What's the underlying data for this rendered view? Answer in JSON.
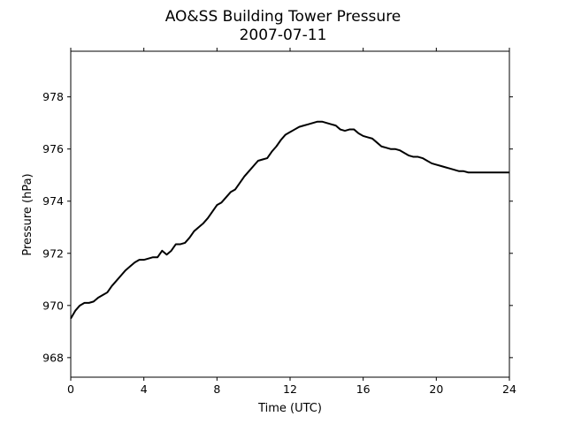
{
  "chart_data": {
    "type": "line",
    "title": "AO&SS Building Tower Pressure",
    "subtitle": "2007-07-11",
    "xlabel": "Time (UTC)",
    "ylabel": "Pressure (hPa)",
    "xlim": [
      0,
      24
    ],
    "ylim": [
      967.25,
      979.75
    ],
    "xticks": [
      0,
      4,
      8,
      12,
      16,
      20,
      24
    ],
    "xtick_labels": [
      "0",
      "4",
      "8",
      "12",
      "16",
      "20",
      "24"
    ],
    "yticks": [
      968,
      970,
      972,
      974,
      976,
      978
    ],
    "ytick_labels": [
      "968",
      "970",
      "972",
      "974",
      "976",
      "978"
    ],
    "grid": false,
    "line_color": "#000000",
    "series": [
      {
        "x": [
          0,
          0.25,
          0.5,
          0.75,
          1.0,
          1.25,
          1.5,
          1.75,
          2.0,
          2.25,
          2.5,
          2.75,
          3.0,
          3.25,
          3.5,
          3.75,
          4.0,
          4.25,
          4.5,
          4.75,
          5.0,
          5.25,
          5.5,
          5.75,
          6.0,
          6.25,
          6.5,
          6.75,
          7.0,
          7.25,
          7.5,
          7.75,
          8.0,
          8.25,
          8.5,
          8.75,
          9.0,
          9.25,
          9.5,
          9.75,
          10.0,
          10.25,
          10.5,
          10.75,
          11.0,
          11.25,
          11.5,
          11.75,
          12.0,
          12.25,
          12.5,
          12.75,
          13.0,
          13.25,
          13.5,
          13.75,
          14.0,
          14.25,
          14.5,
          14.75,
          15.0,
          15.25,
          15.5,
          15.75,
          16.0,
          16.25,
          16.5,
          16.75,
          17.0,
          17.25,
          17.5,
          17.75,
          18.0,
          18.25,
          18.5,
          18.75,
          19.0,
          19.25,
          19.5,
          19.75,
          20.0,
          20.25,
          20.5,
          20.75,
          21.0,
          21.25,
          21.5,
          21.75,
          22.0,
          22.25,
          22.5,
          22.75,
          23.0,
          23.25,
          23.5,
          23.75,
          24.0
        ],
        "y": [
          969.5,
          969.8,
          970.0,
          970.1,
          970.1,
          970.15,
          970.3,
          970.4,
          970.5,
          970.75,
          970.95,
          971.15,
          971.35,
          971.5,
          971.65,
          971.75,
          971.75,
          971.8,
          971.85,
          971.85,
          972.1,
          971.95,
          972.1,
          972.35,
          972.35,
          972.4,
          972.6,
          972.85,
          973.0,
          973.15,
          973.35,
          973.6,
          973.85,
          973.95,
          974.15,
          974.35,
          974.45,
          974.7,
          974.95,
          975.15,
          975.35,
          975.55,
          975.6,
          975.65,
          975.9,
          976.1,
          976.35,
          976.55,
          976.65,
          976.75,
          976.85,
          976.9,
          976.95,
          977.0,
          977.05,
          977.05,
          977.0,
          976.95,
          976.9,
          976.75,
          976.7,
          976.75,
          976.75,
          976.6,
          976.5,
          976.45,
          976.4,
          976.25,
          976.1,
          976.05,
          976.0,
          976.0,
          975.95,
          975.85,
          975.75,
          975.7,
          975.7,
          975.65,
          975.55,
          975.45,
          975.4,
          975.35,
          975.3,
          975.25,
          975.2,
          975.15,
          975.15,
          975.1,
          975.1,
          975.1,
          975.1,
          975.1,
          975.1,
          975.1,
          975.1,
          975.1,
          975.1
        ]
      }
    ]
  }
}
